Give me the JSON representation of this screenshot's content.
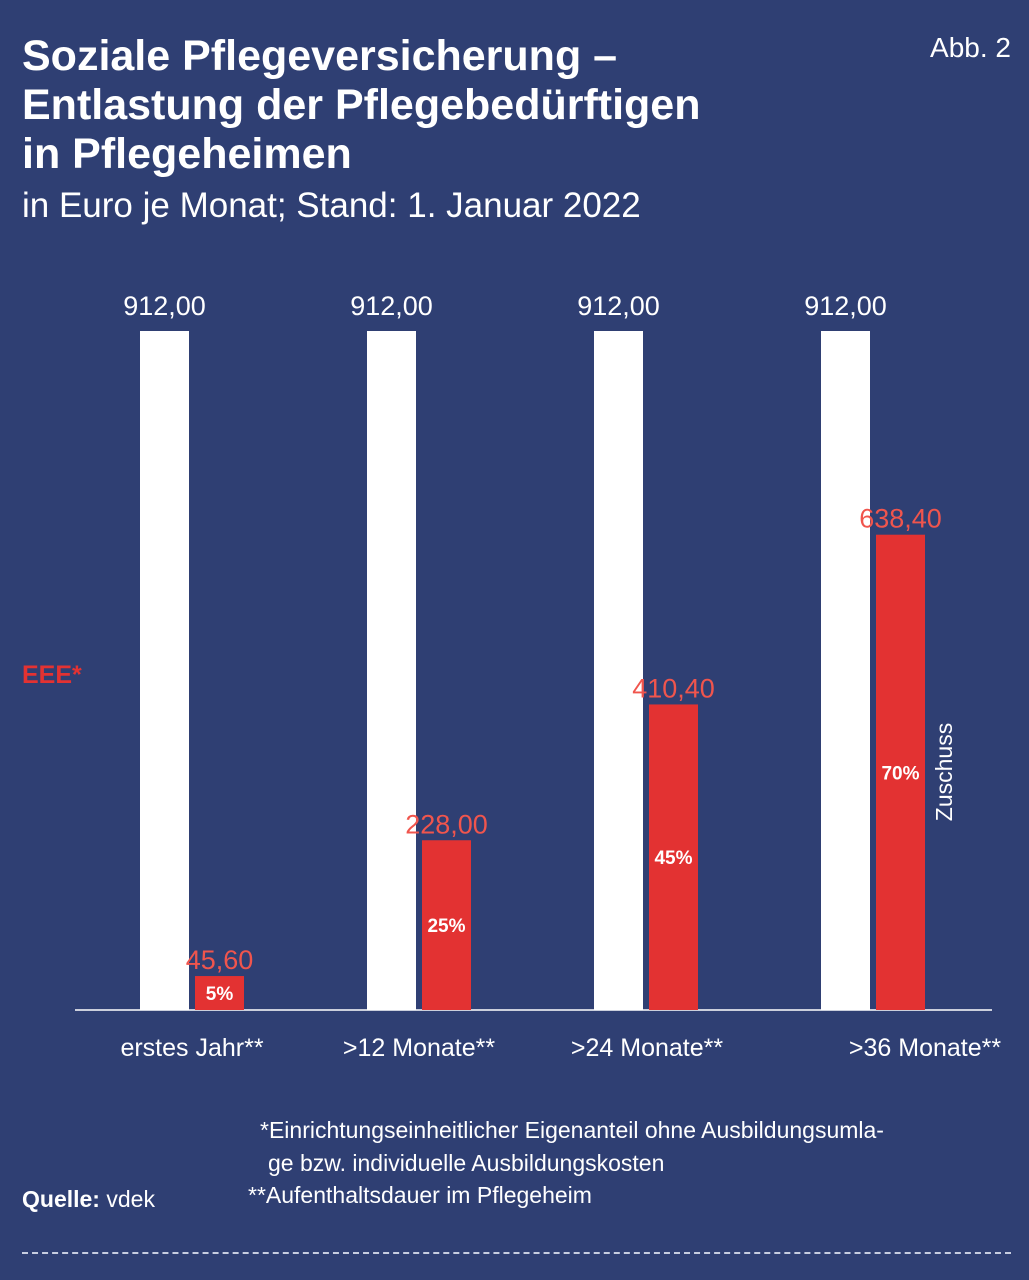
{
  "header": {
    "title_lines": [
      "Soziale Pflegeversicherung –",
      "Entlastung der Pflegebedürftigen",
      "in Pflegeheimen"
    ],
    "subtitle": "in Euro je Monat; Stand: 1. Januar 2022",
    "badge": "Abb. 2"
  },
  "colors": {
    "background": "#2f3f73",
    "eee_bar": "#ffffff",
    "zuschuss_bar": "#e33232",
    "zuschuss_label": "#f0554d",
    "eee_legend": "#e33232"
  },
  "chart_data": {
    "type": "bar",
    "categories": [
      "erstes Jahr**",
      ">12 Monate**",
      ">24 Monate**",
      ">36 Monate**"
    ],
    "series": [
      {
        "name": "EEE*",
        "values": [
          912.0,
          912.0,
          912.0,
          912.0
        ],
        "value_labels": [
          "912,00",
          "912,00",
          "912,00",
          "912,00"
        ]
      },
      {
        "name": "Zuschuss",
        "values": [
          45.6,
          228.0,
          410.4,
          638.4
        ],
        "value_labels": [
          "45,60",
          "228,00",
          "410,40",
          "638,40"
        ],
        "percent_labels": [
          "5%",
          "25%",
          "45%",
          "70%"
        ]
      }
    ],
    "ylim": [
      0,
      912
    ],
    "legend": {
      "eee": "EEE*",
      "zuschuss": "Zuschuss"
    }
  },
  "footnotes": {
    "eee_line1": "*Einrichtungseinheitlicher Eigenanteil ohne Ausbildungsumla-",
    "eee_line2": "ge bzw. individuelle Ausbildungskosten",
    "stay": "**Aufenthaltsdauer im Pflegeheim"
  },
  "source": {
    "label": "Quelle:",
    "value": "vdek"
  }
}
